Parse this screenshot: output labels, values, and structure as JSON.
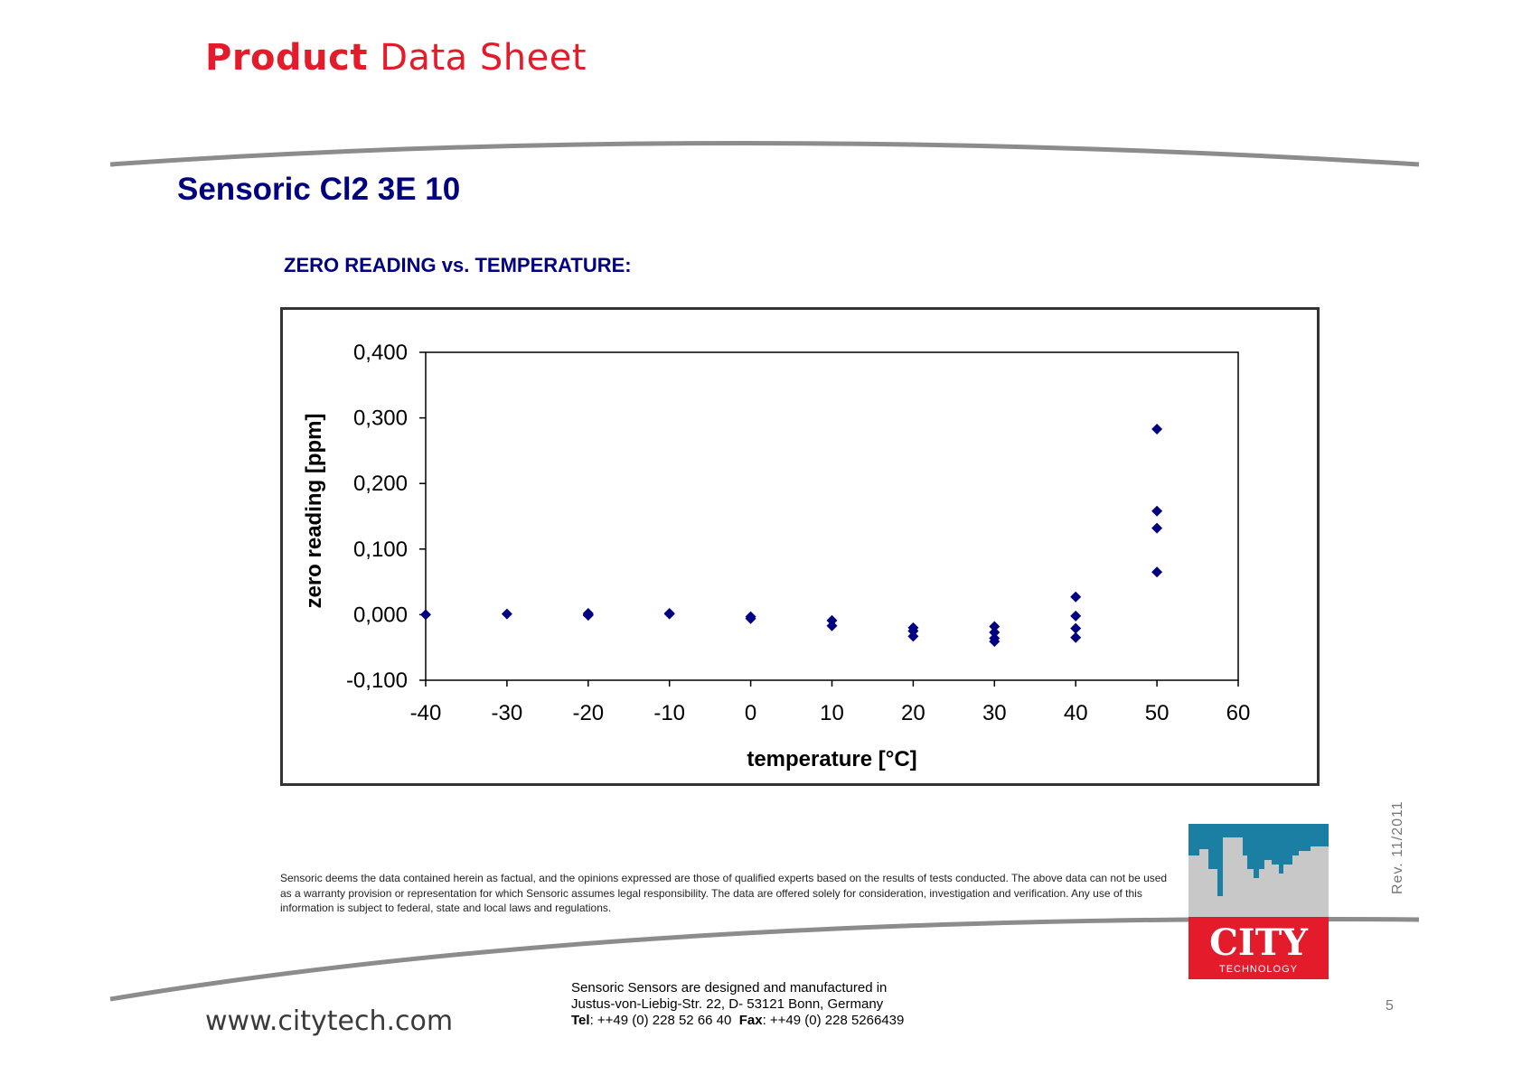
{
  "header": {
    "title_bold": "Product",
    "title_rest": "Data Sheet"
  },
  "product_name": "Sensoric Cl2 3E 10",
  "section_title": "ZERO READING vs. TEMPERATURE:",
  "chart_data": {
    "type": "scatter",
    "xlabel": "temperature [°C]",
    "ylabel": "zero reading [ppm]",
    "xlim": [
      -40,
      60
    ],
    "ylim": [
      -0.1,
      0.4
    ],
    "x_ticks": [
      "-40",
      "-30",
      "-20",
      "-10",
      "0",
      "10",
      "20",
      "30",
      "40",
      "50",
      "60"
    ],
    "y_ticks": [
      "0,400",
      "0,300",
      "0,200",
      "0,100",
      "0,000",
      "-0,100"
    ],
    "grid": false,
    "marker": "diamond",
    "color": "#000080",
    "series": [
      {
        "points": [
          [
            -40,
            0.0
          ],
          [
            -30,
            0.001
          ],
          [
            -20,
            0.0
          ],
          [
            -20,
            0.002
          ],
          [
            -20,
            -0.001
          ],
          [
            -10,
            0.002
          ],
          [
            -10,
            0.001
          ],
          [
            0,
            -0.003
          ],
          [
            0,
            -0.006
          ],
          [
            10,
            -0.009
          ],
          [
            10,
            -0.017
          ],
          [
            20,
            -0.02
          ],
          [
            20,
            -0.025
          ],
          [
            20,
            -0.033
          ],
          [
            30,
            -0.018
          ],
          [
            30,
            -0.027
          ],
          [
            30,
            -0.036
          ],
          [
            30,
            -0.041
          ],
          [
            40,
            0.027
          ],
          [
            40,
            -0.002
          ],
          [
            40,
            -0.021
          ],
          [
            40,
            -0.035
          ],
          [
            50,
            0.283
          ],
          [
            50,
            0.158
          ],
          [
            50,
            0.132
          ],
          [
            50,
            0.065
          ]
        ]
      }
    ]
  },
  "disclaimer": "Sensoric deems the data contained herein as factual, and the opinions expressed are those of qualified experts based on the results of tests conducted. The above data can not be used as a warranty provision or representation for which Sensoric assumes legal responsibility. The data are offered solely for consideration, investigation and verification. Any use of this information is subject to federal, state and local laws and regulations.",
  "revision": "Rev.  11/2011",
  "logo": {
    "name": "CITY",
    "sub": "TECHNOLOGY",
    "color_red": "#e31b2b",
    "color_blue": "#1a7fa3"
  },
  "footer": {
    "website": "www.citytech.com",
    "address_line1": "Sensoric Sensors are designed and manufactured in",
    "address_line2": "Justus-von-Liebig-Str. 22, D- 53121 Bonn, Germany",
    "tel_label": "Tel",
    "tel_value": ": ++49 (0) 228 52 66 40",
    "fax_label": "Fax",
    "fax_value": ": ++49 (0) 228 5266439",
    "page_number": "5"
  }
}
